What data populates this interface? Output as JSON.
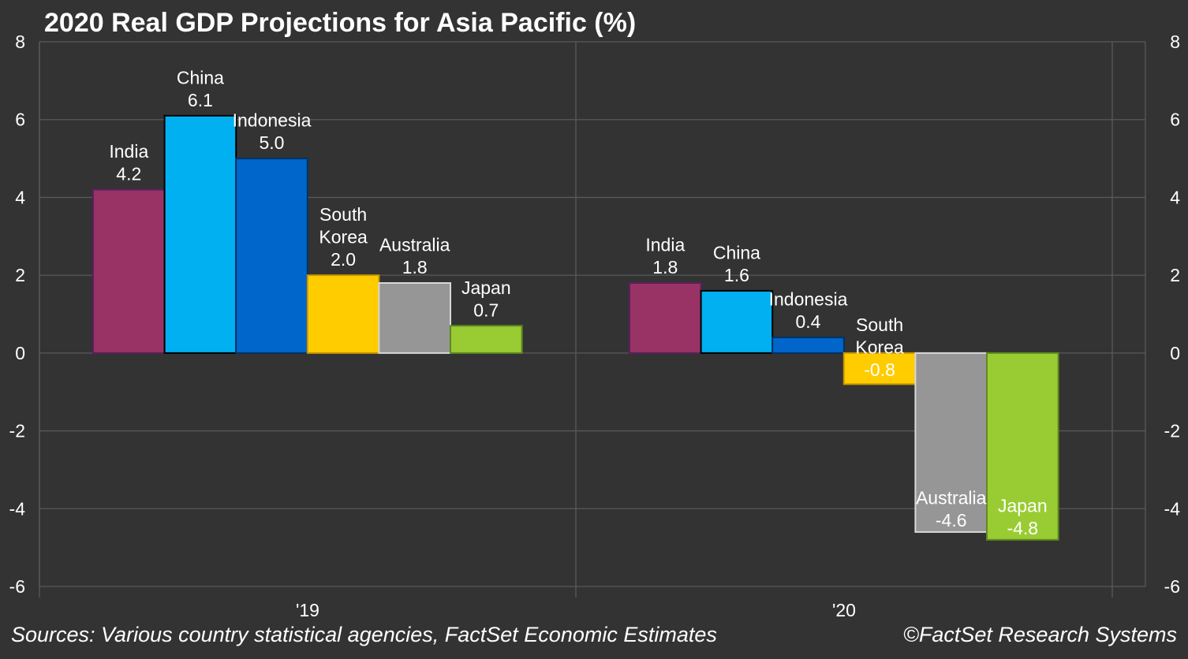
{
  "chart_data": {
    "type": "bar",
    "title": "2020 Real GDP Projections for Asia Pacific (%)",
    "xlabel": "",
    "ylabel": "",
    "ylim": [
      -6,
      8
    ],
    "yticks": [
      8,
      6,
      4,
      2,
      0,
      -2,
      -4,
      -6
    ],
    "ytick_labels": [
      "8",
      "6",
      "4",
      "2",
      "0",
      "-2",
      "-4",
      "-6"
    ],
    "dual_y_axis": true,
    "grid": true,
    "legend": "none",
    "categories": [
      "'19",
      "'20"
    ],
    "series": [
      {
        "name": "India",
        "color": "#993366",
        "border": "#5c1f5c",
        "values": [
          4.2,
          1.8
        ],
        "labels": [
          "4.2",
          "1.8"
        ],
        "name_lines": [
          [
            "India"
          ],
          [
            "India"
          ]
        ]
      },
      {
        "name": "China",
        "color": "#00b0f0",
        "border": "#000000",
        "values": [
          6.1,
          1.6
        ],
        "labels": [
          "6.1",
          "1.6"
        ],
        "name_lines": [
          [
            "China"
          ],
          [
            "China"
          ]
        ]
      },
      {
        "name": "Indonesia",
        "color": "#0066cc",
        "border": "#003366",
        "values": [
          5.0,
          0.4
        ],
        "labels": [
          "5.0",
          "0.4"
        ],
        "name_lines": [
          [
            "Indonesia"
          ],
          [
            "Indonesia"
          ]
        ]
      },
      {
        "name": "South Korea",
        "color": "#ffcc00",
        "border": "#c89600",
        "values": [
          2.0,
          -0.8
        ],
        "labels": [
          "2.0",
          "-0.8"
        ],
        "name_lines": [
          [
            "South",
            "Korea"
          ],
          [
            "South",
            "Korea"
          ]
        ]
      },
      {
        "name": "Australia",
        "color": "#969696",
        "border": "#d9d9d9",
        "values": [
          1.8,
          -4.6
        ],
        "labels": [
          "1.8",
          "-4.6"
        ],
        "name_lines": [
          [
            "Australia"
          ],
          [
            "Australia"
          ]
        ]
      },
      {
        "name": "Japan",
        "color": "#99cc33",
        "border": "#5f8a1f",
        "values": [
          0.7,
          -4.8
        ],
        "labels": [
          "0.7",
          "-4.8"
        ],
        "name_lines": [
          [
            "Japan"
          ],
          [
            "Japan"
          ]
        ]
      }
    ]
  },
  "footer": {
    "source": "Sources: Various country statistical agencies, FactSet Economic Estimates",
    "copyright": "©FactSet Research Systems"
  },
  "colors": {
    "background": "#333333",
    "gridline": "#595959",
    "text": "#ffffff"
  }
}
